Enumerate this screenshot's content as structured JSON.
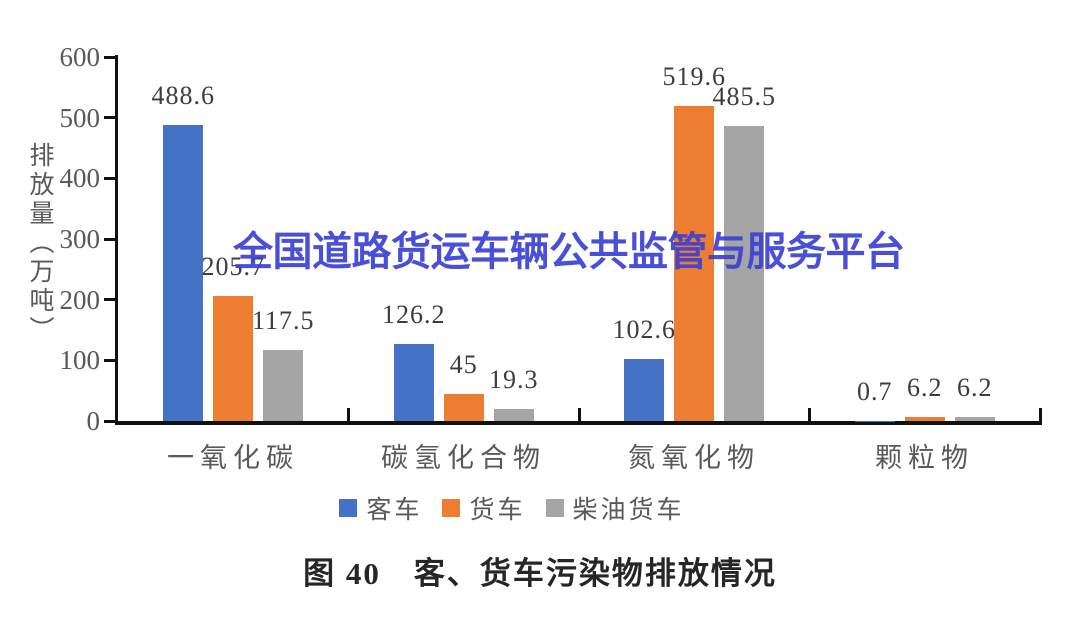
{
  "watermark_text": "全国道路货运车辆公共监管与服务平台",
  "caption": "图 40　客、货车污染物排放情况",
  "chart_data": {
    "type": "bar",
    "categories": [
      "一氧化碳",
      "碳氢化合物",
      "氮氧化物",
      "颗粒物"
    ],
    "series": [
      {
        "name": "客车",
        "color": "#4472C4",
        "values": [
          488.6,
          126.2,
          102.6,
          0.7
        ],
        "labels": [
          "488.6",
          "126.2",
          "102.6",
          "0.7"
        ]
      },
      {
        "name": "货车",
        "color": "#ED7D31",
        "values": [
          205.7,
          45,
          519.6,
          6.2
        ],
        "labels": [
          "205.7",
          "45",
          "519.6",
          "6.2"
        ]
      },
      {
        "name": "柴油货车",
        "color": "#A5A5A5",
        "values": [
          117.5,
          19.3,
          485.5,
          6.2
        ],
        "labels": [
          "117.5",
          "19.3",
          "485.5",
          "6.2"
        ]
      }
    ],
    "ylabel": "排放量（万吨）",
    "ylim": [
      0,
      600
    ],
    "yticks": [
      0,
      100,
      200,
      300,
      400,
      500,
      600
    ],
    "grid": false,
    "legend_position": "bottom",
    "axis_color": "#111111",
    "tick_label_color": "#595959",
    "value_label_color": "#3d3d3d",
    "watermark_color": "#3B41D4"
  }
}
